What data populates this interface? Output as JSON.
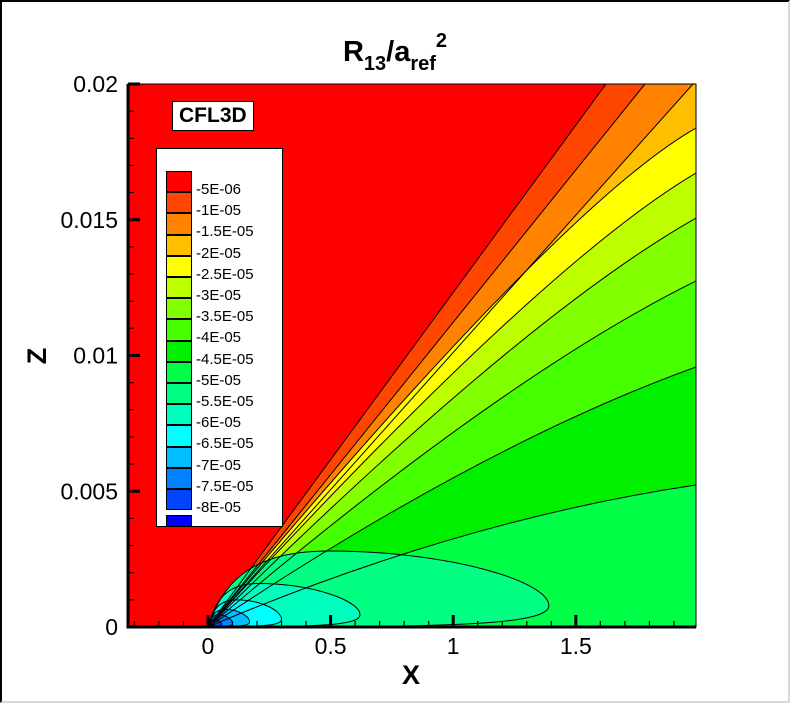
{
  "chart_data": {
    "type": "heatmap",
    "subtype": "filled-contour",
    "title": "R13/aref^2",
    "title_parts": {
      "base": "R",
      "sub1": "13",
      "mid": "/a",
      "sub2": "ref",
      "sup": "2"
    },
    "annotation": "CFL3D",
    "xlabel": "X",
    "ylabel": "Z",
    "xlim": [
      -0.326,
      1.99
    ],
    "ylim": [
      0,
      0.02
    ],
    "x_ticks": [
      0,
      0.5,
      1,
      1.5
    ],
    "x_tick_labels": [
      "0",
      "0.5",
      "1",
      "1.5"
    ],
    "x_minor_step": 0.1,
    "y_ticks": [
      0,
      0.005,
      0.01,
      0.015,
      0.02
    ],
    "y_tick_labels": [
      "0",
      "0.005",
      "0.01",
      "0.015",
      "0.02"
    ],
    "y_minor_step": 0.001,
    "grid": false,
    "legend_position": "upper-left inside plot",
    "levels": [
      {
        "label": "-5E-06",
        "value": -5e-06,
        "color": "#ff0000"
      },
      {
        "label": "-1E-05",
        "value": -1e-05,
        "color": "#ff4600"
      },
      {
        "label": "-1.5E-05",
        "value": -1.5e-05,
        "color": "#ff8200"
      },
      {
        "label": "-2E-05",
        "value": -2e-05,
        "color": "#ffbe00"
      },
      {
        "label": "-2.5E-05",
        "value": -2.5e-05,
        "color": "#ffff00"
      },
      {
        "label": "-3E-05",
        "value": -3e-05,
        "color": "#beff00"
      },
      {
        "label": "-3.5E-05",
        "value": -3.5e-05,
        "color": "#82ff00"
      },
      {
        "label": "-4E-05",
        "value": -4e-05,
        "color": "#46ff00"
      },
      {
        "label": "-4.5E-05",
        "value": -4.5e-05,
        "color": "#00f000"
      },
      {
        "label": "-5E-05",
        "value": -5e-05,
        "color": "#00ff46"
      },
      {
        "label": "-5.5E-05",
        "value": -5.5e-05,
        "color": "#00ff82"
      },
      {
        "label": "-6E-05",
        "value": -6e-05,
        "color": "#00ffbe"
      },
      {
        "label": "-6.5E-05",
        "value": -6.5e-05,
        "color": "#00ffff"
      },
      {
        "label": "-7E-05",
        "value": -7e-05,
        "color": "#00beff"
      },
      {
        "label": "-7.5E-05",
        "value": -7.5e-05,
        "color": "#0082ff"
      },
      {
        "label": "-8E-05",
        "value": -8e-05,
        "color": "#0046ff"
      },
      {
        "label": "",
        "value": -8.5e-05,
        "color": "#0000ff"
      }
    ],
    "description": "Plate leading edge at x=0, z=0. Freestream region (x<0 and above leading-edge ray) is >= -5E-06 (red). Contours fan out from the leading edge; near-wall bubbles of -5E-05 to -8E-05 concentrated near x=0..1.4."
  }
}
